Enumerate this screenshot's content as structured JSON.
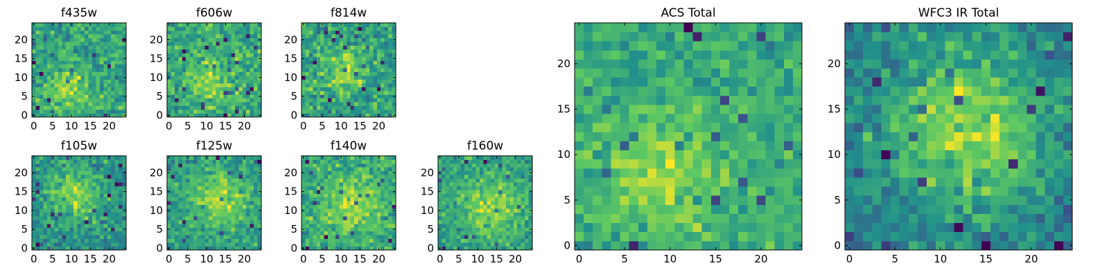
{
  "figure": {
    "background": "#ffffff",
    "colormap": "viridis",
    "colormap_stops": [
      "#440154",
      "#3b528b",
      "#21918c",
      "#5ec962",
      "#fde725"
    ]
  },
  "chart_data": [
    {
      "type": "heatmap",
      "title": "f435w",
      "grid_size": [
        25,
        25
      ],
      "x_ticks": [
        "0",
        "5",
        "10",
        "15",
        "20"
      ],
      "y_ticks": [
        "0",
        "5",
        "10",
        "15",
        "20"
      ],
      "xlim": [
        -0.5,
        24.5
      ],
      "ylim": [
        -0.5,
        24.5
      ],
      "noise_level": 0.55,
      "center": [
        9,
        7
      ],
      "peak_width": 4.0,
      "seed": 11
    },
    {
      "type": "heatmap",
      "title": "f606w",
      "grid_size": [
        25,
        25
      ],
      "x_ticks": [
        "0",
        "5",
        "10",
        "15",
        "20"
      ],
      "y_ticks": [
        "0",
        "5",
        "10",
        "15",
        "20"
      ],
      "xlim": [
        -0.5,
        24.5
      ],
      "ylim": [
        -0.5,
        24.5
      ],
      "noise_level": 0.6,
      "center": [
        11,
        9
      ],
      "peak_width": 4.0,
      "seed": 23
    },
    {
      "type": "heatmap",
      "title": "f814w",
      "grid_size": [
        25,
        25
      ],
      "x_ticks": [
        "0",
        "5",
        "10",
        "15",
        "20"
      ],
      "y_ticks": [
        "0",
        "5",
        "10",
        "15",
        "20"
      ],
      "xlim": [
        -0.5,
        24.5
      ],
      "ylim": [
        -0.5,
        24.5
      ],
      "noise_level": 0.55,
      "center": [
        11,
        12
      ],
      "peak_width": 4.0,
      "seed": 37
    },
    {
      "type": "heatmap",
      "title": "f105w",
      "grid_size": [
        25,
        25
      ],
      "x_ticks": [
        "0",
        "5",
        "10",
        "15",
        "20"
      ],
      "y_ticks": [
        "0",
        "5",
        "10",
        "15",
        "20"
      ],
      "xlim": [
        -0.5,
        24.5
      ],
      "ylim": [
        -0.5,
        24.5
      ],
      "noise_level": 0.4,
      "center": [
        11,
        14
      ],
      "peak_width": 5.0,
      "seed": 41
    },
    {
      "type": "heatmap",
      "title": "f125w",
      "grid_size": [
        25,
        25
      ],
      "x_ticks": [
        "0",
        "5",
        "10",
        "15",
        "20"
      ],
      "y_ticks": [
        "0",
        "5",
        "10",
        "15",
        "20"
      ],
      "xlim": [
        -0.5,
        24.5
      ],
      "ylim": [
        -0.5,
        24.5
      ],
      "noise_level": 0.4,
      "center": [
        13,
        13
      ],
      "peak_width": 5.5,
      "seed": 53
    },
    {
      "type": "heatmap",
      "title": "f140w",
      "grid_size": [
        25,
        25
      ],
      "x_ticks": [
        "0",
        "5",
        "10",
        "15",
        "20"
      ],
      "y_ticks": [
        "0",
        "5",
        "10",
        "15",
        "20"
      ],
      "xlim": [
        -0.5,
        24.5
      ],
      "ylim": [
        -0.5,
        24.5
      ],
      "noise_level": 0.45,
      "center": [
        13,
        11
      ],
      "peak_width": 5.5,
      "seed": 67
    },
    {
      "type": "heatmap",
      "title": "f160w",
      "grid_size": [
        25,
        25
      ],
      "x_ticks": [
        "0",
        "5",
        "10",
        "15",
        "20"
      ],
      "y_ticks": [
        "0",
        "5",
        "10",
        "15",
        "20"
      ],
      "xlim": [
        -0.5,
        24.5
      ],
      "ylim": [
        -0.5,
        24.5
      ],
      "noise_level": 0.45,
      "center": [
        14,
        11
      ],
      "peak_width": 5.5,
      "seed": 79
    },
    {
      "type": "heatmap",
      "title": "ACS Total",
      "grid_size": [
        25,
        25
      ],
      "x_ticks": [
        "0",
        "5",
        "10",
        "15",
        "20"
      ],
      "y_ticks": [
        "0",
        "5",
        "10",
        "15",
        "20"
      ],
      "xlim": [
        -0.5,
        24.5
      ],
      "ylim": [
        -0.5,
        24.5
      ],
      "noise_level": 0.45,
      "center": [
        9,
        8
      ],
      "peak_width": 4.5,
      "seed": 97
    },
    {
      "type": "heatmap",
      "title": "WFC3 IR Total",
      "grid_size": [
        25,
        25
      ],
      "x_ticks": [
        "0",
        "5",
        "10",
        "15",
        "20"
      ],
      "y_ticks": [
        "0",
        "5",
        "10",
        "15",
        "20"
      ],
      "xlim": [
        -0.5,
        24.5
      ],
      "ylim": [
        -0.5,
        24.5
      ],
      "noise_level": 0.28,
      "center": [
        13,
        13
      ],
      "peak_width": 6.5,
      "seed": 113
    }
  ]
}
